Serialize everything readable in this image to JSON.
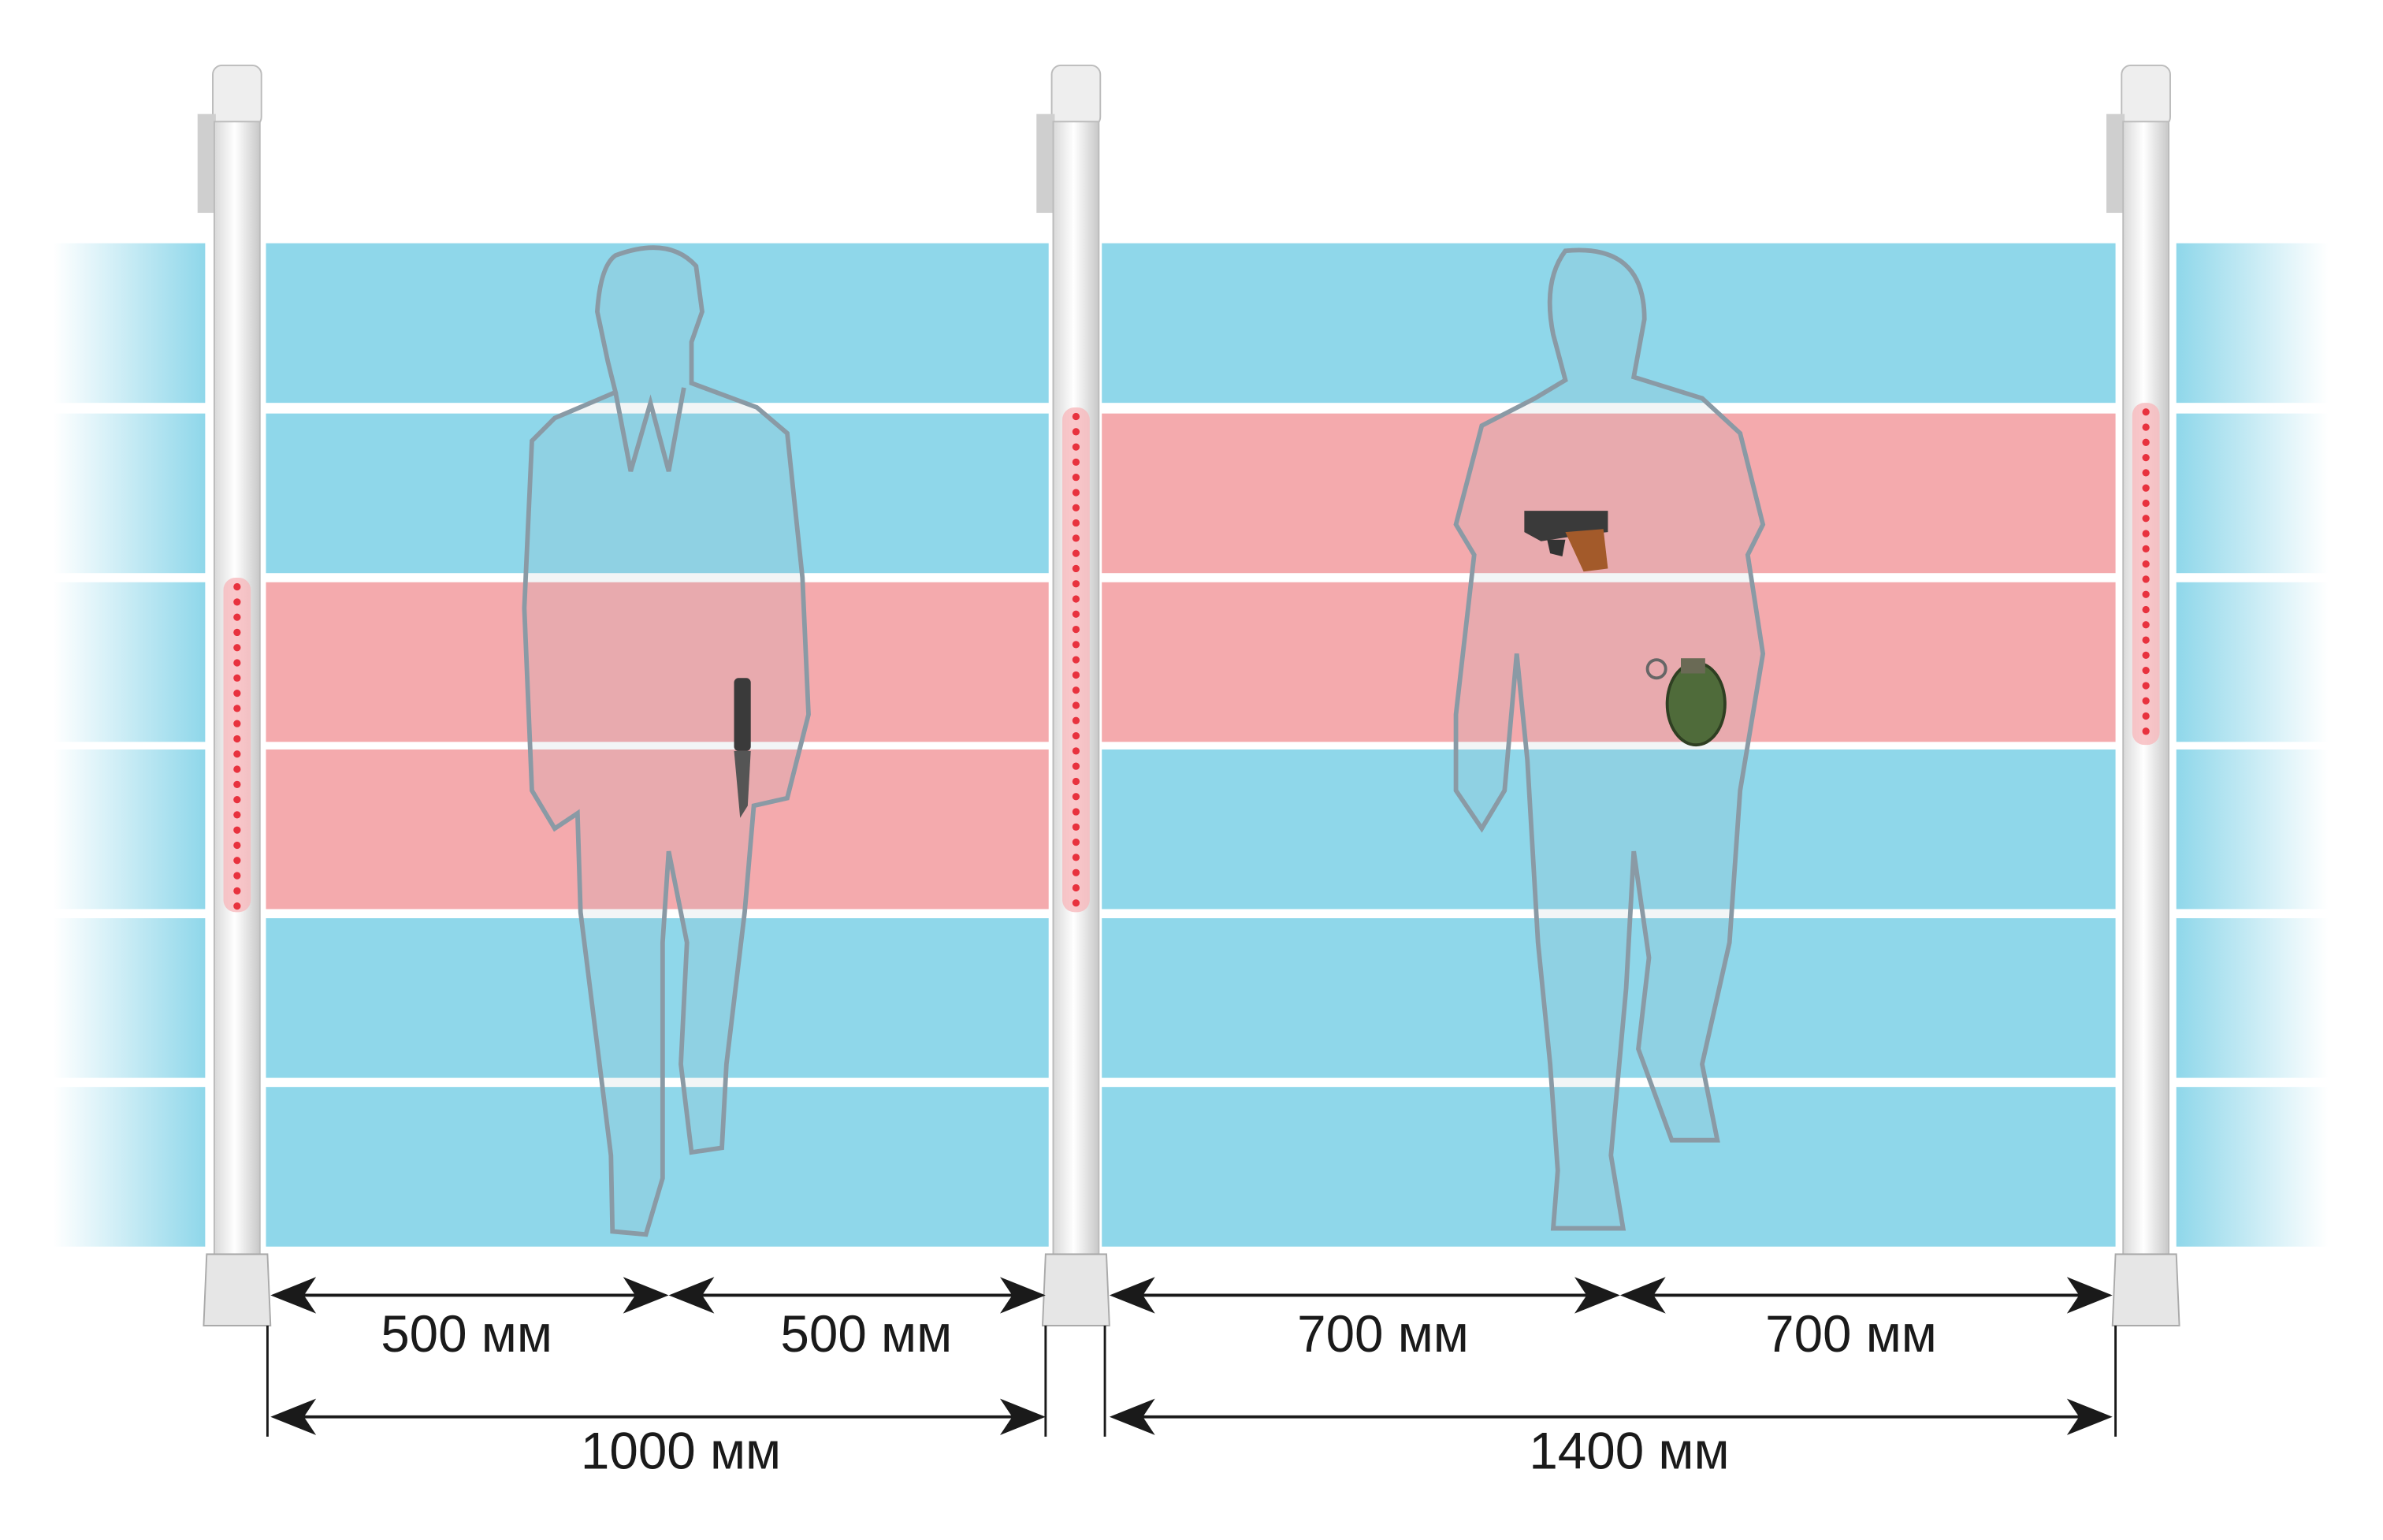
{
  "dimensions": {
    "left": {
      "segments": [
        "500 мм",
        "500 мм"
      ],
      "total": "1000 мм"
    },
    "right": {
      "segments": [
        "700 мм",
        "700 мм"
      ],
      "total": "1400 мм"
    }
  }
}
